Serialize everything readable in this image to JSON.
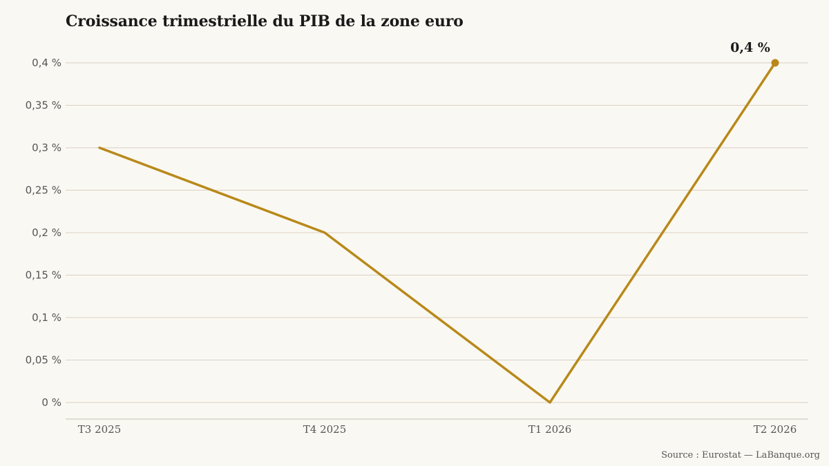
{
  "title": "Croissance trimestrielle du PIB de la zone euro",
  "source": "Source : Eurostat — LaBanque.org",
  "chart_data": {
    "type": "line",
    "title": "Croissance trimestrielle du PIB de la zone euro",
    "xlabel": "",
    "ylabel": "",
    "categories": [
      "T3 2025",
      "T4 2025",
      "T1 2026",
      "T2 2026"
    ],
    "series": [
      {
        "values": [
          0.3,
          0.2,
          0.0,
          0.4
        ]
      }
    ],
    "ylim": [
      0,
      0.4
    ],
    "yticks": [
      0,
      0.05,
      0.1,
      0.15,
      0.2,
      0.25,
      0.3,
      0.35,
      0.4
    ],
    "ytick_labels": [
      "0 %",
      "0,05 %",
      "0,1 %",
      "0,15 %",
      "0,2 %",
      "0,25 %",
      "0,3 %",
      "0,35 %",
      "0,4 %"
    ],
    "annotations": [
      {
        "category": "T2 2026",
        "value": 0.4,
        "text": "0,4 %"
      }
    ],
    "grid": true,
    "colors": {
      "line": "#b8891a",
      "grid": "#d9cfc4",
      "axis": "#c9bfb3",
      "tick_text": "#555555"
    }
  }
}
